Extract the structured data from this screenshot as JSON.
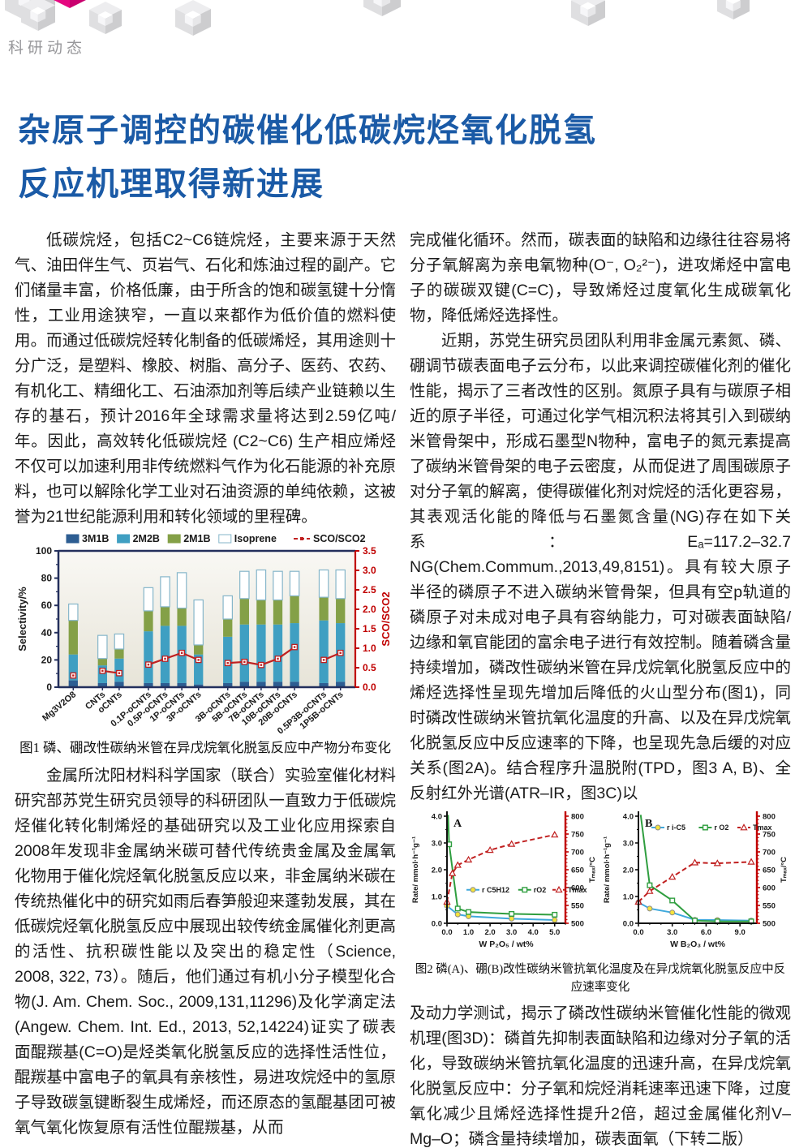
{
  "page": {
    "section_label": "科研动态",
    "title_line1": "杂原子调控的碳催化低碳烷烃氧化脱氢",
    "title_line2": "反应机理取得新进展",
    "title_color": "#1a5aa6",
    "accent_pink": "#e50880",
    "cube_gray": "#dfdfe1"
  },
  "article": {
    "left": {
      "para1": "低碳烷烃，包括C2~C6链烷烃，主要来源于天然气、油田伴生气、页岩气、石化和炼油过程的副产。它们储量丰富，价格低廉，由于所含的饱和碳氢键十分惰性，工业用途狭窄，一直以来都作为低价值的燃料使用。而通过低碳烷烃转化制备的低碳烯烃，其用途则十分广泛，是塑料、橡胶、树脂、高分子、医药、农药、有机化工、精细化工、石油添加剂等后续产业链赖以生存的基石，预计2016年全球需求量将达到2.59亿吨/年。因此，高效转化低碳烷烃 (C2~C6) 生产相应烯烃不仅可以加速利用非传统燃料气作为化石能源的补充原料，也可以解除化学工业对石油资源的单纯依赖，这被誉为21世纪能源利用和转化领域的里程碑。",
      "para2": "金属所沈阳材料科学国家（联合）实验室催化材料研究部苏党生研究员领导的科研团队一直致力于低碳烷烃催化转化制烯烃的基础研究以及工业化应用探索自2008年发现非金属纳米碳可替代传统贵金属及金属氧化物用于催化烷烃氧化脱氢反应以来，非金属纳米碳在传统热催化中的研究如雨后春笋般迎来蓬勃发展，其在低碳烷烃氧化脱氢反应中展现出较传统金属催化剂更高的活性、抗积碳性能以及突出的稳定性（Science, 2008, 322, 73）。随后，他们通过有机小分子模型化合物(J. Am. Chem. Soc., 2009,131,11296)及化学滴定法(Angew. Chem. Int. Ed., 2013, 52,14224)证实了碳表面醌羰基(C=O)是烃类氧化脱氢反应的选择性活性位，醌羰基中富电子的氧具有亲核性，易进攻烷烃中的氢原子导致碳氢键断裂生成烯烃，而还原态的氢醌基团可被氧气氧化恢复原有活性位醌羰基，从而"
    },
    "right": {
      "para1": "完成催化循环。然而，碳表面的缺陷和边缘往往容易将分子氧解离为亲电氧物种(O⁻, O₂²⁻)，进攻烯烃中富电子的碳碳双键(C=C)，导致烯烃过度氧化生成碳氧化物，降低烯烃选择性。",
      "para2": "近期，苏党生研究员团队利用非金属元素氮、磷、硼调节碳表面电子云分布，以此来调控碳催化剂的催化性能，揭示了三者改性的区别。氮原子具有与碳原子相近的原子半径，可通过化学气相沉积法将其引入到碳纳米管骨架中，形成石墨型N物种，富电子的氮元素提高了碳纳米管骨架的电子云密度，从而促进了周围碳原子对分子氧的解离，使得碳催化剂对烷烃的活化更容易，其表观活化能的降低与石墨氮含量(NG)存在如下关系：Eₐ=117.2–32.7 NG(Chem.Commum.,2013,49,8151)。具有较大原子半径的磷原子不进入碳纳米管骨架，但具有空p轨道的磷原子对未成对电子具有容纳能力，可对碳表面缺陷/边缘和氧官能团的富余电子进行有效控制。随着磷含量持续增加，磷改性碳纳米管在异戊烷氧化脱氢反应中的烯烃选择性呈现先增加后降低的火山型分布(图1)，同时磷改性碳纳米管抗氧化温度的升高、以及在异戊烷氧化脱氢反应中反应速率的下降，也呈现先急后缓的对应关系(图2A)。结合程序升温脱附(TPD，图3 A, B)、全反射红外光谱(ATR–IR，图3C)以",
      "para3": "及动力学测试，揭示了磷改性碳纳米管催化性能的微观机理(图3D)：磷首先抑制表面缺陷和边缘对分子氧的活化，导致碳纳米管抗氧化温度的迅速升高，在异戊烷氧化脱氢反应中：分子氧和烷烃消耗速率迅速下降，过度氧化减少且烯烃选择性提升2倍，超过金属催化剂V–Mg–O；磷含量持续增加，碳表面氧（下转二版）"
    },
    "fig1_caption": "图1 磷、硼改性碳纳米管在异戊烷氧化脱氢反应中产物分布变化",
    "fig2_caption": "图2 磷(A)、硼(B)改性碳纳米管抗氧化温度及在异戊烷氧化脱氢反应中反应速率变化"
  },
  "chart_data": [
    {
      "id": "fig1",
      "type": "bar",
      "stacked": true,
      "categories": [
        "Mg3V2O8",
        "CNTs",
        "oCNTs",
        "0.1P-oCNTs",
        "0.5P-oCNTs",
        "1P-oCNTs",
        "3P-oCNTs",
        "3B-oCNTs",
        "5B-oCNTs",
        "7B-oCNTs",
        "10B-oCNTs",
        "20B-oCNTs",
        "0.5P3B-oCNTs",
        "1P5B-oCNTs"
      ],
      "groups": [
        [
          0
        ],
        [
          1,
          2
        ],
        [
          3,
          4,
          5,
          6
        ],
        [
          7,
          8,
          9,
          10,
          11
        ],
        [
          12,
          13
        ]
      ],
      "series": [
        {
          "name": "3M1B",
          "color": "#2d5d92",
          "values": [
            5,
            3,
            4,
            3,
            3,
            3,
            2,
            3,
            4,
            4,
            4,
            4,
            3,
            4
          ]
        },
        {
          "name": "2M2B",
          "color": "#3f9fc2",
          "values": [
            19,
            13,
            17,
            38,
            42,
            42,
            22,
            34,
            42,
            42,
            42,
            43,
            46,
            43
          ]
        },
        {
          "name": "2M1B",
          "color": "#84a047",
          "values": [
            25,
            5,
            7,
            15,
            14,
            13,
            7,
            13,
            19,
            18,
            18,
            20,
            17,
            18
          ]
        },
        {
          "name": "Isoprene",
          "color": "#ffffff",
          "values": [
            12,
            17,
            11,
            17,
            22,
            26,
            33,
            17,
            20,
            22,
            21,
            18,
            20,
            21
          ]
        }
      ],
      "line_series": {
        "name": "SCO/SCO2",
        "color": "#c02020",
        "values": [
          0.3,
          0.42,
          0.36,
          0.58,
          0.73,
          0.88,
          0.7,
          0.62,
          0.65,
          0.57,
          0.73,
          1.03,
          0.7,
          0.88
        ]
      },
      "ylabel_left": "Selectivity/%",
      "ylim_left": [
        0,
        100
      ],
      "yticks_left": [
        0,
        20,
        40,
        60,
        80,
        100
      ],
      "ylabel_right": "SCO/SCO2",
      "ylim_right": [
        0,
        3.5
      ],
      "yticks_right": [
        0.0,
        0.5,
        1.0,
        1.5,
        2.0,
        2.5,
        3.0,
        3.5
      ],
      "legend_position": "top",
      "grid": false
    },
    {
      "id": "fig2a",
      "type": "line",
      "panel_label": "A",
      "xlabel": "W P₂O₅ / wt%",
      "ylabel_left": "Rate/ mmol·h⁻¹g⁻¹",
      "ylabel_right": "Tₘₐₓ/°C",
      "xlim": [
        0,
        5.5
      ],
      "xticks": [
        0.0,
        1.0,
        2.0,
        3.0,
        4.0,
        5.0
      ],
      "xminor": 0.5,
      "ylim_left": [
        0,
        4
      ],
      "yticks_left": [
        0.0,
        1.0,
        2.0,
        3.0,
        4.0
      ],
      "ylim_right": [
        500,
        800
      ],
      "yticks_right": [
        500,
        550,
        600,
        650,
        700,
        750,
        800
      ],
      "series": [
        {
          "name": "r C5H12",
          "axis": "left",
          "color": "#3fa9dc",
          "marker": "circle",
          "marker_fill": "#f5e33c",
          "x": [
            0,
            0.5,
            1,
            3,
            5
          ],
          "y": [
            0.65,
            0.33,
            0.26,
            0.17,
            0.12
          ]
        },
        {
          "name": "rO2",
          "axis": "left",
          "color": "#2f9e3f",
          "marker": "square",
          "marker_fill": "#ffffff",
          "x": [
            0.05,
            0.1,
            0.5,
            1,
            3,
            5
          ],
          "y": [
            4.05,
            2.95,
            0.55,
            0.42,
            0.35,
            0.32
          ]
        },
        {
          "name": "Tmax",
          "axis": "right",
          "color": "#c02020",
          "dash": true,
          "marker": "triangle",
          "marker_fill": "#ffffff",
          "x": [
            0,
            0.25,
            0.5,
            1,
            2,
            3,
            5
          ],
          "y": [
            560,
            640,
            663,
            678,
            705,
            722,
            748
          ]
        }
      ],
      "legend_position": "middle",
      "grid": false
    },
    {
      "id": "fig2b",
      "type": "line",
      "panel_label": "B",
      "xlabel": "W B₂O₃ / wt%",
      "ylabel_left": "Rate/ mmol·h⁻¹g⁻¹",
      "ylabel_right": "Tₘₐₓ/°C",
      "xlim": [
        0,
        10.5
      ],
      "xticks": [
        0.0,
        3.0,
        6.0,
        9.0
      ],
      "xminor": 1.0,
      "ylim_left": [
        0,
        4
      ],
      "yticks_left": [
        0.0,
        1.0,
        2.0,
        3.0,
        4.0
      ],
      "ylim_right": [
        500,
        800
      ],
      "yticks_right": [
        500,
        550,
        600,
        650,
        700,
        750,
        800
      ],
      "series": [
        {
          "name": "r i-C5",
          "axis": "left",
          "color": "#3fa9dc",
          "marker": "circle",
          "marker_fill": "#f5e33c",
          "x": [
            0,
            1,
            3,
            5,
            7,
            10
          ],
          "y": [
            0.78,
            0.55,
            0.4,
            0.13,
            0.12,
            0.1
          ]
        },
        {
          "name": "r O2",
          "axis": "left",
          "color": "#2f9e3f",
          "marker": "square",
          "marker_fill": "#ffffff",
          "x": [
            0.2,
            1,
            3,
            5,
            7,
            10
          ],
          "y": [
            4.05,
            1.42,
            0.85,
            0.1,
            0.07,
            0.07
          ]
        },
        {
          "name": "Tmax",
          "axis": "right",
          "color": "#c02020",
          "dash": true,
          "marker": "triangle",
          "marker_fill": "#ffffff",
          "x": [
            0,
            1,
            3,
            5,
            7,
            10
          ],
          "y": [
            560,
            590,
            630,
            670,
            668,
            672
          ]
        }
      ],
      "legend_position": "top",
      "grid": false
    }
  ]
}
